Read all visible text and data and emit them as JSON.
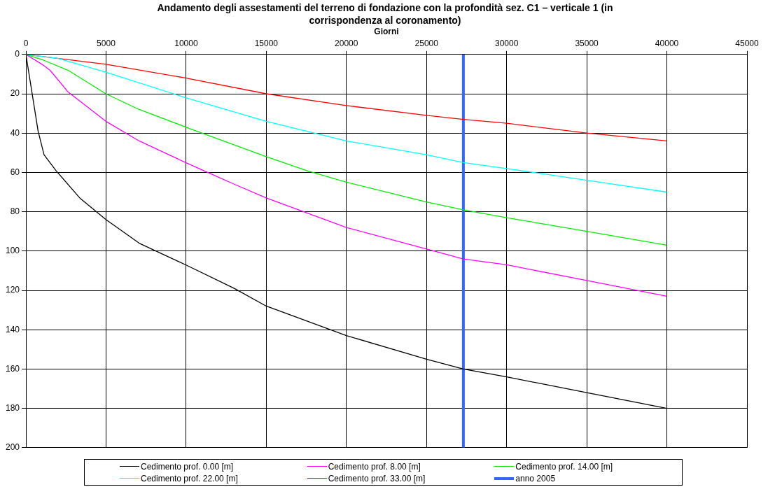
{
  "chart_data": {
    "type": "line",
    "title": "Andamento degli assestamenti del terreno di fondazione con la profondità sez. C1 – verticale 1 (in corrispondenza al coronamento)",
    "xlabel": "Giorni",
    "xlim": [
      0,
      45000
    ],
    "xticks": [
      0,
      5000,
      10000,
      15000,
      20000,
      25000,
      30000,
      35000,
      40000,
      45000
    ],
    "ylim": [
      200,
      0
    ],
    "yticks": [
      0,
      20,
      40,
      60,
      80,
      100,
      120,
      140,
      160,
      180,
      200
    ],
    "grid": true,
    "legend": "bottom",
    "marker": "none",
    "line_style": "solid",
    "series": [
      {
        "name": "Cedimento prof. 0.00 [m]",
        "color": "#000000",
        "x": [
          0,
          760,
          1130,
          1870,
          3360,
          4990,
          7070,
          9970,
          13000,
          15000,
          20000,
          25000,
          27300,
          30000,
          35000,
          40000
        ],
        "values": [
          0,
          39,
          51,
          59,
          73,
          84,
          96,
          107,
          119,
          128,
          143,
          155,
          160,
          164,
          172,
          180
        ]
      },
      {
        "name": "Cedimento prof. 8.00 [m]",
        "color": "#ff00ff",
        "x": [
          0,
          1000,
          1500,
          2620,
          4990,
          7070,
          9970,
          13000,
          15000,
          20000,
          25000,
          27300,
          30000,
          35000,
          40000
        ],
        "values": [
          0,
          5,
          8,
          19,
          34,
          44,
          55,
          66,
          73,
          88,
          99,
          104,
          107,
          115,
          123
        ]
      },
      {
        "name": "Cedimento prof. 14.00 [m]",
        "color": "#00ee00",
        "x": [
          0,
          1130,
          2620,
          4990,
          7070,
          10000,
          15000,
          17500,
          20000,
          25000,
          27300,
          30000,
          35000,
          40000
        ],
        "values": [
          0,
          3,
          8,
          20,
          28,
          37,
          52,
          59,
          65,
          75,
          79,
          83,
          90,
          97
        ]
      },
      {
        "name": "Cedimento prof. 22.00 [m]",
        "color": "#00ffff",
        "x": [
          0,
          2000,
          4990,
          9970,
          15000,
          20000,
          25000,
          27300,
          30000,
          35000,
          40000
        ],
        "values": [
          0,
          2,
          9,
          22,
          34,
          44,
          51,
          55,
          58,
          64,
          70
        ]
      },
      {
        "name": "Cedimento prof. 33.00 [m]",
        "color": "#ff0000",
        "x": [
          0,
          5000,
          10000,
          15000,
          20000,
          25000,
          27300,
          30000,
          35000,
          40000
        ],
        "values": [
          0,
          5,
          12,
          20,
          26,
          31,
          33,
          35,
          40,
          44
        ]
      }
    ],
    "ref_lines": [
      {
        "axis": "x",
        "value": 27300,
        "label": "anno 2005",
        "color": "#3366ff"
      }
    ]
  }
}
